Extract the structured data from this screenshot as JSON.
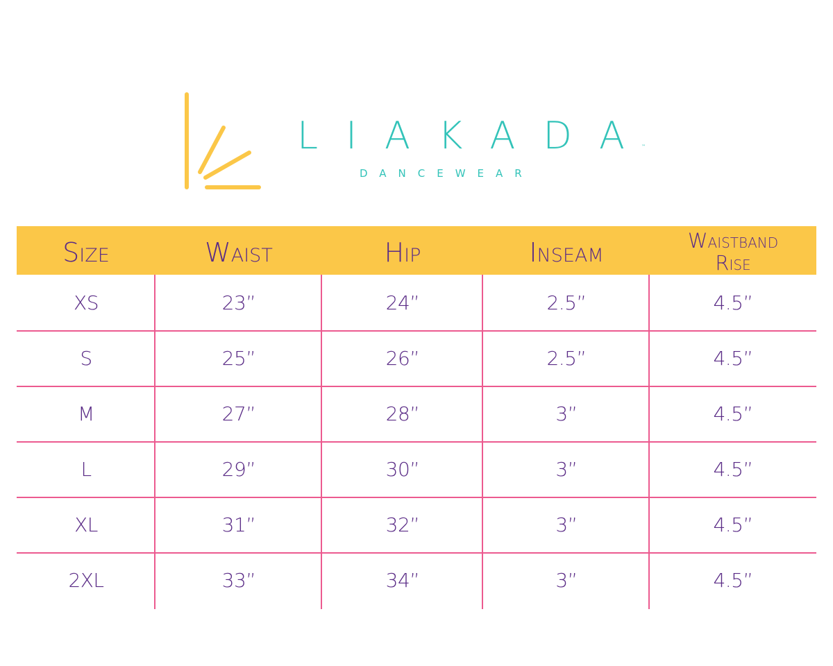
{
  "brand": {
    "name": "LIAKADA",
    "tagline": "DANCEWEAR",
    "trademark": "™",
    "primary_color": "#33c3b9",
    "accent_color": "#fbc748"
  },
  "table": {
    "header_color": "#fbc748",
    "text_color": "#5a2b86",
    "grid_color": "#ec5a8f",
    "headers": {
      "size": "Size",
      "waist": "Waist",
      "hip": "Hip",
      "inseam": "Inseam",
      "waistband_rise_line1": "Waistband",
      "waistband_rise_line2": "Rise"
    },
    "rows": [
      {
        "size": "XS",
        "waist": "23”",
        "hip": "24”",
        "inseam": "2.5”",
        "rise": "4.5”"
      },
      {
        "size": "S",
        "waist": "25”",
        "hip": "26”",
        "inseam": "2.5”",
        "rise": "4.5”"
      },
      {
        "size": "M",
        "waist": "27”",
        "hip": "28”",
        "inseam": "3”",
        "rise": "4.5”"
      },
      {
        "size": "L",
        "waist": "29”",
        "hip": "30”",
        "inseam": "3”",
        "rise": "4.5”"
      },
      {
        "size": "XL",
        "waist": "31”",
        "hip": "32”",
        "inseam": "3”",
        "rise": "4.5”"
      },
      {
        "size": "2XL",
        "waist": "33”",
        "hip": "34”",
        "inseam": "3”",
        "rise": "4.5”"
      }
    ]
  }
}
